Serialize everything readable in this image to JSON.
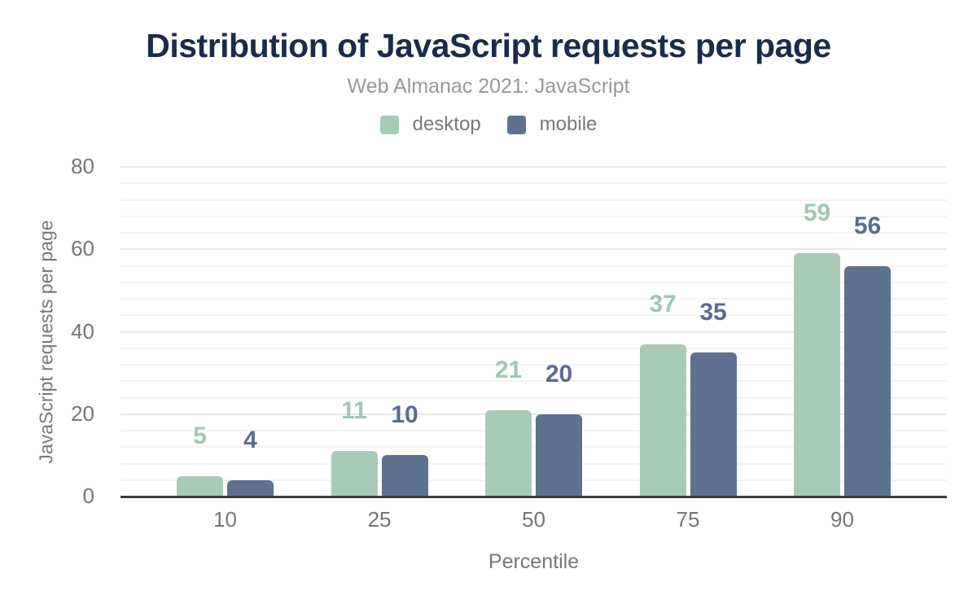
{
  "chart_data": {
    "type": "bar",
    "title": "Distribution of JavaScript requests per page",
    "subtitle": "Web Almanac 2021: JavaScript",
    "categories": [
      "10",
      "25",
      "50",
      "75",
      "90"
    ],
    "series": [
      {
        "name": "desktop",
        "color": "#a8cbb7",
        "label_color": "#a2c7b2",
        "values": [
          5,
          11,
          21,
          37,
          59
        ]
      },
      {
        "name": "mobile",
        "color": "#5f7190",
        "label_color": "#5a6d90",
        "values": [
          4,
          10,
          20,
          35,
          56
        ]
      }
    ],
    "xlabel": "Percentile",
    "ylabel": "JavaScript requests per page",
    "ylim": [
      0,
      80
    ],
    "yticks": [
      0,
      20,
      40,
      60,
      80
    ],
    "y_major_step": 20,
    "y_minor_step": 4,
    "grid": true,
    "legend_position": "top",
    "colors": {
      "title": "#1b2b4a",
      "subtitle": "#96989b",
      "axis_text": "#757575",
      "axis_line": "#3b3b3b"
    }
  }
}
